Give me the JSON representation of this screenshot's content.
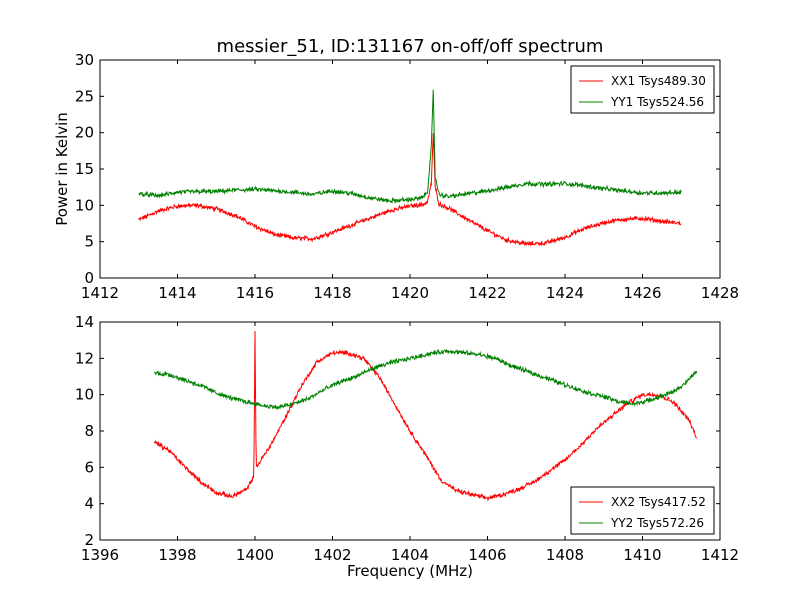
{
  "title": "messier_51, ID:131167 on-off/off spectrum",
  "colors": {
    "XX": "#ff0000",
    "YY": "#008000"
  },
  "chart_data": [
    {
      "type": "line",
      "xlabel": "",
      "ylabel": "Power in Kelvin",
      "xlim": [
        1412,
        1428
      ],
      "ylim": [
        0,
        30
      ],
      "xticks": [
        1412,
        1414,
        1416,
        1418,
        1420,
        1422,
        1424,
        1426,
        1428
      ],
      "yticks": [
        0,
        5,
        10,
        15,
        20,
        25,
        30
      ],
      "legend": "top-right",
      "series": [
        {
          "name": "XX1 Tsys489.30",
          "color": "#ff0000",
          "x": [
            1413.0,
            1413.5,
            1414.0,
            1414.5,
            1415.0,
            1415.5,
            1416.0,
            1416.5,
            1417.0,
            1417.5,
            1418.0,
            1418.5,
            1419.0,
            1419.5,
            1420.0,
            1420.3,
            1420.45,
            1420.55,
            1420.6,
            1420.65,
            1420.75,
            1421.0,
            1421.5,
            1422.0,
            1422.5,
            1423.0,
            1423.5,
            1424.0,
            1424.5,
            1425.0,
            1425.5,
            1426.0,
            1426.5,
            1427.0
          ],
          "y": [
            8.0,
            9.2,
            9.9,
            10.0,
            9.5,
            8.6,
            7.1,
            6.0,
            5.5,
            5.4,
            6.3,
            7.3,
            8.3,
            9.3,
            9.9,
            10.1,
            10.4,
            13.0,
            20.0,
            12.5,
            10.2,
            9.6,
            8.0,
            6.5,
            5.2,
            4.7,
            4.8,
            5.6,
            6.8,
            7.6,
            8.1,
            8.2,
            7.8,
            7.5
          ]
        },
        {
          "name": "YY1 Tsys524.56",
          "color": "#008000",
          "x": [
            1413.0,
            1413.5,
            1414.0,
            1414.5,
            1415.0,
            1415.5,
            1416.0,
            1416.5,
            1417.0,
            1417.5,
            1418.0,
            1418.5,
            1419.0,
            1419.5,
            1420.0,
            1420.3,
            1420.45,
            1420.55,
            1420.6,
            1420.65,
            1420.75,
            1421.0,
            1421.5,
            1422.0,
            1422.5,
            1423.0,
            1423.5,
            1424.0,
            1424.5,
            1425.0,
            1425.5,
            1426.0,
            1426.5,
            1427.0
          ],
          "y": [
            11.6,
            11.3,
            11.8,
            11.9,
            11.9,
            12.1,
            12.2,
            12.0,
            11.8,
            11.5,
            12.0,
            11.6,
            11.0,
            10.6,
            10.8,
            11.0,
            11.8,
            18.0,
            25.7,
            14.0,
            11.5,
            11.2,
            11.6,
            12.0,
            12.5,
            13.0,
            12.9,
            13.0,
            12.7,
            12.3,
            12.0,
            11.7,
            11.7,
            11.8
          ]
        }
      ]
    },
    {
      "type": "line",
      "xlabel": "Frequency (MHz)",
      "ylabel": "",
      "xlim": [
        1396,
        1412
      ],
      "ylim": [
        2,
        14
      ],
      "xticks": [
        1396,
        1398,
        1400,
        1402,
        1404,
        1406,
        1408,
        1410,
        1412
      ],
      "yticks": [
        2,
        4,
        6,
        8,
        10,
        12,
        14
      ],
      "legend": "bottom-right",
      "series": [
        {
          "name": "XX2 Tsys417.52",
          "color": "#ff0000",
          "x": [
            1397.4,
            1397.8,
            1398.2,
            1398.6,
            1399.0,
            1399.4,
            1399.8,
            1399.97,
            1400.0,
            1400.03,
            1400.4,
            1400.8,
            1401.2,
            1401.6,
            1402.0,
            1402.4,
            1402.8,
            1403.2,
            1403.6,
            1404.0,
            1404.4,
            1404.8,
            1405.2,
            1405.6,
            1406.0,
            1406.4,
            1406.8,
            1407.2,
            1407.6,
            1408.0,
            1408.4,
            1408.8,
            1409.2,
            1409.6,
            1410.0,
            1410.4,
            1410.8,
            1411.2,
            1411.4
          ],
          "y": [
            7.4,
            6.9,
            6.0,
            5.2,
            4.6,
            4.4,
            4.8,
            5.5,
            13.4,
            6.0,
            7.2,
            8.8,
            10.5,
            11.8,
            12.3,
            12.3,
            12.0,
            11.0,
            9.5,
            8.0,
            6.7,
            5.3,
            4.7,
            4.5,
            4.3,
            4.5,
            4.8,
            5.2,
            5.8,
            6.4,
            7.2,
            8.1,
            8.8,
            9.5,
            10.0,
            10.0,
            9.6,
            8.6,
            7.6
          ]
        },
        {
          "name": "YY2 Tsys572.26",
          "color": "#008000",
          "x": [
            1397.4,
            1397.8,
            1398.2,
            1398.6,
            1399.0,
            1399.4,
            1399.8,
            1400.2,
            1400.6,
            1401.0,
            1401.4,
            1401.8,
            1402.2,
            1402.6,
            1403.0,
            1403.4,
            1403.8,
            1404.2,
            1404.6,
            1405.0,
            1405.4,
            1405.8,
            1406.2,
            1406.6,
            1407.0,
            1407.4,
            1407.8,
            1408.2,
            1408.6,
            1409.0,
            1409.4,
            1409.8,
            1410.2,
            1410.6,
            1411.0,
            1411.4
          ],
          "y": [
            11.2,
            11.1,
            10.8,
            10.5,
            10.1,
            9.8,
            9.6,
            9.4,
            9.3,
            9.5,
            9.8,
            10.3,
            10.7,
            11.0,
            11.4,
            11.7,
            11.9,
            12.1,
            12.3,
            12.4,
            12.3,
            12.2,
            12.0,
            11.6,
            11.3,
            11.0,
            10.7,
            10.4,
            10.1,
            9.9,
            9.6,
            9.5,
            9.7,
            10.0,
            10.4,
            11.3
          ]
        }
      ]
    }
  ]
}
